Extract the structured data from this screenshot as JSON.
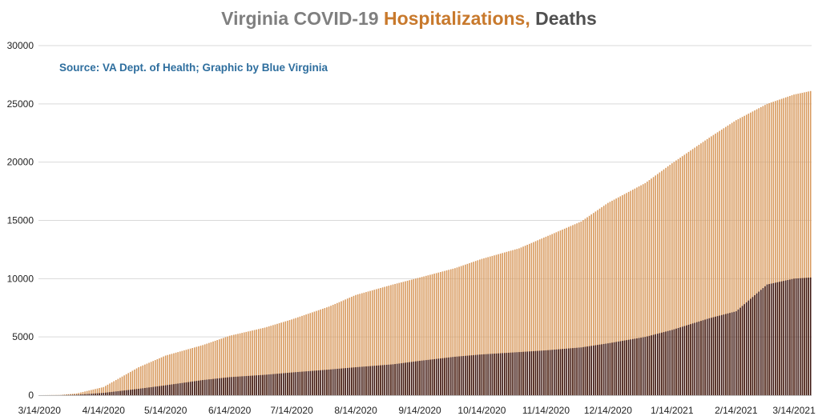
{
  "colors": {
    "title_grey": "#7f7f7f",
    "hospitalizations": "#c8792c",
    "hospitalizations_bar": "#d89a5e",
    "deaths_title": "#505050",
    "deaths_bar": "#3d1712",
    "source": "#2e6e9e",
    "grid": "#d9d9d9"
  },
  "chart_data": {
    "type": "bar",
    "title_parts": [
      "Virginia COVID-19 ",
      "Hospitalizations,",
      " Deaths"
    ],
    "source": "Source: VA Dept. of Health; Graphic by Blue Virginia",
    "ylim": [
      0,
      30000
    ],
    "yticks": [
      0,
      5000,
      10000,
      15000,
      20000,
      25000,
      30000
    ],
    "grid": true,
    "start_date": "3/14/2020",
    "end_date": "3/22/2021",
    "x_tick_labels": [
      "3/14/2020",
      "4/14/2020",
      "5/14/2020",
      "6/14/2020",
      "7/14/2020",
      "8/14/2020",
      "9/14/2020",
      "10/14/2020",
      "11/14/2020",
      "12/14/2020",
      "1/14/2021",
      "2/14/2021",
      "3/14/2021"
    ],
    "series": [
      {
        "name": "Hospitalizations",
        "anchors": [
          [
            "3/14/2020",
            0
          ],
          [
            "3/24/2020",
            20
          ],
          [
            "4/1/2020",
            150
          ],
          [
            "4/14/2020",
            700
          ],
          [
            "5/1/2020",
            2400
          ],
          [
            "5/14/2020",
            3400
          ],
          [
            "6/1/2020",
            4300
          ],
          [
            "6/14/2020",
            5100
          ],
          [
            "7/1/2020",
            5800
          ],
          [
            "7/14/2020",
            6500
          ],
          [
            "8/1/2020",
            7600
          ],
          [
            "8/14/2020",
            8600
          ],
          [
            "9/1/2020",
            9500
          ],
          [
            "9/14/2020",
            10100
          ],
          [
            "10/1/2020",
            10900
          ],
          [
            "10/14/2020",
            11700
          ],
          [
            "11/1/2020",
            12600
          ],
          [
            "11/14/2020",
            13600
          ],
          [
            "12/1/2020",
            14900
          ],
          [
            "12/14/2020",
            16500
          ],
          [
            "1/1/2021",
            18200
          ],
          [
            "1/14/2021",
            19900
          ],
          [
            "2/1/2021",
            22100
          ],
          [
            "2/14/2021",
            23600
          ],
          [
            "3/1/2021",
            25000
          ],
          [
            "3/14/2021",
            25800
          ],
          [
            "3/22/2021",
            26100
          ]
        ]
      },
      {
        "name": "Deaths",
        "anchors": [
          [
            "3/14/2020",
            0
          ],
          [
            "3/24/2020",
            5
          ],
          [
            "4/1/2020",
            40
          ],
          [
            "4/14/2020",
            200
          ],
          [
            "5/1/2020",
            550
          ],
          [
            "5/14/2020",
            850
          ],
          [
            "6/1/2020",
            1300
          ],
          [
            "6/14/2020",
            1550
          ],
          [
            "7/1/2020",
            1750
          ],
          [
            "7/14/2020",
            1950
          ],
          [
            "8/1/2020",
            2200
          ],
          [
            "8/14/2020",
            2400
          ],
          [
            "9/1/2020",
            2650
          ],
          [
            "9/14/2020",
            2950
          ],
          [
            "10/1/2020",
            3300
          ],
          [
            "10/14/2020",
            3500
          ],
          [
            "11/1/2020",
            3700
          ],
          [
            "11/14/2020",
            3850
          ],
          [
            "12/1/2020",
            4100
          ],
          [
            "12/14/2020",
            4450
          ],
          [
            "1/1/2021",
            5000
          ],
          [
            "1/14/2021",
            5600
          ],
          [
            "2/1/2021",
            6600
          ],
          [
            "2/14/2021",
            7200
          ],
          [
            "3/1/2021",
            9500
          ],
          [
            "3/14/2021",
            10000
          ],
          [
            "3/22/2021",
            10100
          ]
        ]
      }
    ]
  }
}
